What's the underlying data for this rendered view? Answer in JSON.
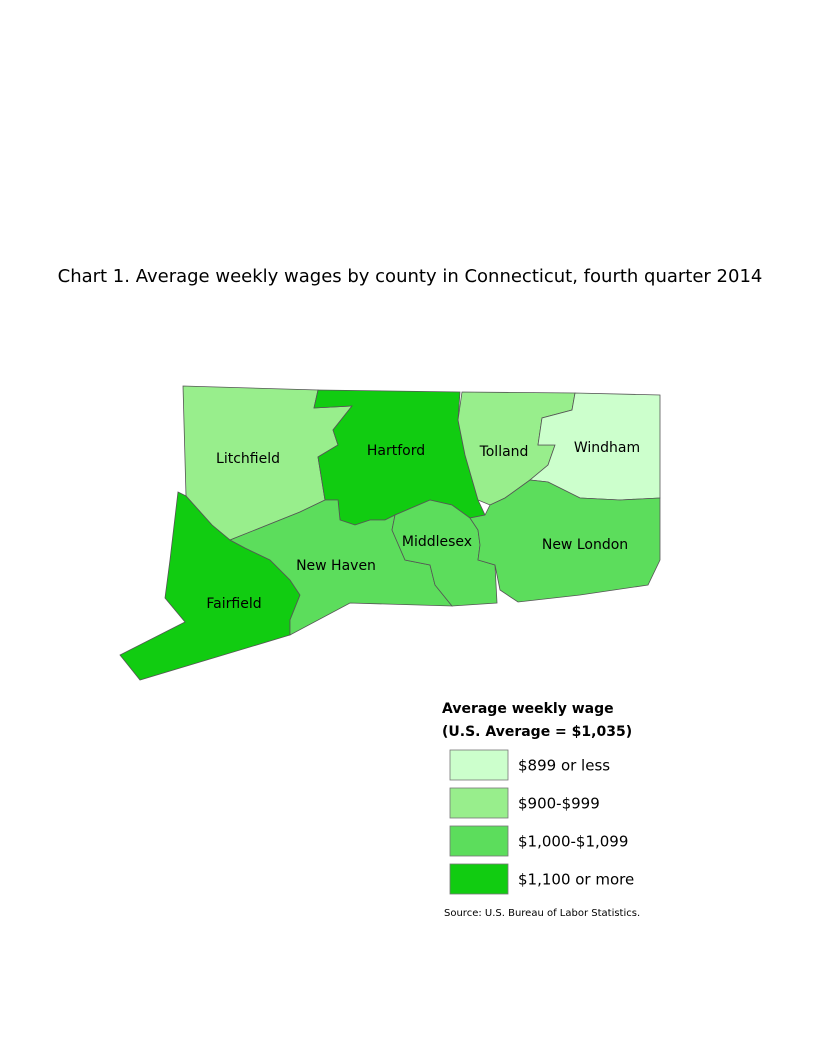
{
  "title": "Chart 1. Average weekly wages by county in Connecticut, fourth quarter 2014",
  "legend": {
    "title": [
      "Average weekly wage",
      "(U.S. Average = $1,035)"
    ],
    "items": [
      {
        "label": "$899 or less",
        "color": "#ccffcc",
        "counties": [
          "Windham"
        ]
      },
      {
        "label": "$900-$999",
        "color": "#98ee8c",
        "counties": [
          "Litchfield",
          "Tolland"
        ]
      },
      {
        "label": "$1,000-$1,099",
        "color": "#5cdd5c",
        "counties": [
          "New Haven",
          "Middlesex",
          "New London"
        ]
      },
      {
        "label": "$1,100 or more",
        "color": "#11cc11",
        "counties": [
          "Hartford",
          "Fairfield"
        ]
      }
    ]
  },
  "source": "Source: U.S. Bureau of Labor Statistics."
}
